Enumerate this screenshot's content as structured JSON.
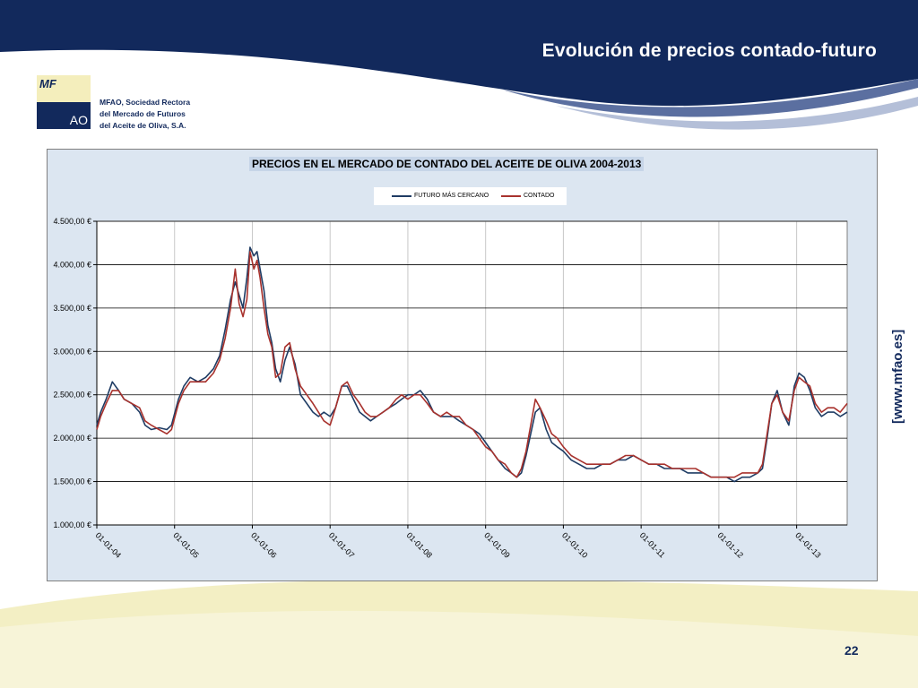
{
  "header": {
    "title": "Evolución de precios contado-futuro"
  },
  "logo": {
    "mark_top": "MF",
    "mark_bottom": "AO",
    "org_line1": "MFAO, Sociedad Rectora",
    "org_line2": "del Mercado de Futuros",
    "org_line3": "del Aceite de Oliva, S.A."
  },
  "website": "[www.mfao.es]",
  "page_number": "22",
  "colors": {
    "navy": "#12295c",
    "futuro": "#1f3c64",
    "contado": "#a8322d",
    "plot_bg": "#ffffff",
    "frame_bg": "#dce6f1"
  },
  "chart_data": {
    "type": "line",
    "title": "PRECIOS EN EL MERCADO DE CONTADO DEL ACEITE DE OLIVA 2004-2013",
    "xlabel": "",
    "ylabel": "",
    "ylim": [
      1000,
      4500
    ],
    "yticks": [
      "1.000,00 €",
      "1.500,00 €",
      "2.000,00 €",
      "2.500,00 €",
      "3.000,00 €",
      "3.500,00 €",
      "4.000,00 €",
      "4.500,00 €"
    ],
    "ytick_values": [
      1000,
      1500,
      2000,
      2500,
      3000,
      3500,
      4000,
      4500
    ],
    "xticks": [
      "01-01-04",
      "01-01-05",
      "01-01-06",
      "01-01-07",
      "01-01-08",
      "01-01-09",
      "01-01-10",
      "01-01-11",
      "01-01-12",
      "01-01-13"
    ],
    "xlim": [
      2004.0,
      2013.65
    ],
    "grid": true,
    "legend_position": "top",
    "series": [
      {
        "name": "FUTURO MÁS CERCANO",
        "color": "#1f3c64",
        "x": [
          2004.0,
          2004.05,
          2004.12,
          2004.2,
          2004.28,
          2004.35,
          2004.45,
          2004.55,
          2004.62,
          2004.7,
          2004.8,
          2004.9,
          2004.96,
          2005.05,
          2005.12,
          2005.2,
          2005.3,
          2005.4,
          2005.5,
          2005.58,
          2005.65,
          2005.72,
          2005.78,
          2005.83,
          2005.88,
          2005.93,
          2005.97,
          2006.02,
          2006.06,
          2006.1,
          2006.15,
          2006.2,
          2006.25,
          2006.3,
          2006.36,
          2006.42,
          2006.48,
          2006.55,
          2006.62,
          2006.7,
          2006.78,
          2006.85,
          2006.92,
          2007.0,
          2007.07,
          2007.15,
          2007.22,
          2007.3,
          2007.38,
          2007.45,
          2007.52,
          2007.6,
          2007.68,
          2007.76,
          2007.85,
          2007.92,
          2008.0,
          2008.08,
          2008.16,
          2008.25,
          2008.33,
          2008.42,
          2008.5,
          2008.58,
          2008.66,
          2008.75,
          2008.84,
          2008.92,
          2009.0,
          2009.08,
          2009.16,
          2009.25,
          2009.33,
          2009.4,
          2009.46,
          2009.52,
          2009.58,
          2009.64,
          2009.7,
          2009.78,
          2009.85,
          2009.92,
          2010.0,
          2010.1,
          2010.2,
          2010.3,
          2010.4,
          2010.5,
          2010.6,
          2010.7,
          2010.8,
          2010.9,
          2011.0,
          2011.1,
          2011.2,
          2011.3,
          2011.4,
          2011.5,
          2011.6,
          2011.7,
          2011.8,
          2011.9,
          2012.0,
          2012.1,
          2012.2,
          2012.3,
          2012.4,
          2012.5,
          2012.56,
          2012.62,
          2012.68,
          2012.75,
          2012.82,
          2012.9,
          2012.97,
          2013.03,
          2013.1,
          2013.17,
          2013.24,
          2013.32,
          2013.4,
          2013.48,
          2013.56,
          2013.65
        ],
        "values": [
          2150,
          2300,
          2450,
          2650,
          2550,
          2450,
          2400,
          2300,
          2150,
          2100,
          2120,
          2100,
          2150,
          2450,
          2600,
          2700,
          2650,
          2700,
          2800,
          2950,
          3250,
          3600,
          3800,
          3650,
          3500,
          3850,
          4200,
          4100,
          4150,
          3950,
          3700,
          3300,
          3100,
          2800,
          2650,
          2900,
          3050,
          2850,
          2500,
          2400,
          2300,
          2250,
          2300,
          2250,
          2350,
          2600,
          2600,
          2450,
          2300,
          2250,
          2200,
          2250,
          2300,
          2350,
          2400,
          2450,
          2500,
          2500,
          2550,
          2450,
          2300,
          2250,
          2250,
          2250,
          2200,
          2150,
          2100,
          2050,
          1950,
          1850,
          1750,
          1650,
          1600,
          1550,
          1600,
          1800,
          2050,
          2300,
          2350,
          2100,
          1950,
          1900,
          1850,
          1750,
          1700,
          1650,
          1650,
          1700,
          1700,
          1750,
          1750,
          1800,
          1750,
          1700,
          1700,
          1650,
          1650,
          1650,
          1600,
          1600,
          1600,
          1550,
          1550,
          1550,
          1500,
          1550,
          1550,
          1600,
          1650,
          2000,
          2400,
          2550,
          2300,
          2150,
          2600,
          2750,
          2700,
          2550,
          2350,
          2250,
          2300,
          2300,
          2250,
          2300
        ]
      },
      {
        "name": "CONTADO",
        "color": "#a8322d",
        "x": [
          2004.0,
          2004.05,
          2004.12,
          2004.2,
          2004.28,
          2004.35,
          2004.45,
          2004.55,
          2004.62,
          2004.7,
          2004.8,
          2004.9,
          2004.96,
          2005.05,
          2005.12,
          2005.2,
          2005.3,
          2005.4,
          2005.5,
          2005.58,
          2005.65,
          2005.72,
          2005.78,
          2005.83,
          2005.88,
          2005.93,
          2005.97,
          2006.02,
          2006.06,
          2006.1,
          2006.15,
          2006.2,
          2006.25,
          2006.3,
          2006.36,
          2006.42,
          2006.48,
          2006.55,
          2006.62,
          2006.7,
          2006.78,
          2006.85,
          2006.92,
          2007.0,
          2007.07,
          2007.15,
          2007.22,
          2007.3,
          2007.38,
          2007.45,
          2007.52,
          2007.6,
          2007.68,
          2007.76,
          2007.85,
          2007.92,
          2008.0,
          2008.08,
          2008.16,
          2008.25,
          2008.33,
          2008.42,
          2008.5,
          2008.58,
          2008.66,
          2008.75,
          2008.84,
          2008.92,
          2009.0,
          2009.08,
          2009.16,
          2009.25,
          2009.33,
          2009.4,
          2009.46,
          2009.52,
          2009.58,
          2009.64,
          2009.7,
          2009.78,
          2009.85,
          2009.92,
          2010.0,
          2010.1,
          2010.2,
          2010.3,
          2010.4,
          2010.5,
          2010.6,
          2010.7,
          2010.8,
          2010.9,
          2011.0,
          2011.1,
          2011.2,
          2011.3,
          2011.4,
          2011.5,
          2011.6,
          2011.7,
          2011.8,
          2011.9,
          2012.0,
          2012.1,
          2012.2,
          2012.3,
          2012.4,
          2012.5,
          2012.56,
          2012.62,
          2012.68,
          2012.75,
          2012.82,
          2012.9,
          2012.97,
          2013.03,
          2013.1,
          2013.17,
          2013.24,
          2013.32,
          2013.4,
          2013.48,
          2013.56,
          2013.65
        ],
        "values": [
          2100,
          2250,
          2400,
          2550,
          2550,
          2450,
          2400,
          2350,
          2200,
          2150,
          2100,
          2050,
          2100,
          2400,
          2550,
          2650,
          2650,
          2650,
          2750,
          2900,
          3150,
          3500,
          3950,
          3550,
          3400,
          3600,
          4150,
          3950,
          4050,
          3850,
          3500,
          3200,
          3050,
          2700,
          2750,
          3050,
          3100,
          2800,
          2600,
          2500,
          2400,
          2300,
          2200,
          2150,
          2350,
          2600,
          2650,
          2500,
          2400,
          2300,
          2250,
          2250,
          2300,
          2350,
          2450,
          2500,
          2450,
          2500,
          2500,
          2400,
          2300,
          2250,
          2300,
          2250,
          2250,
          2150,
          2100,
          2000,
          1900,
          1850,
          1750,
          1700,
          1600,
          1550,
          1650,
          1850,
          2150,
          2450,
          2350,
          2200,
          2050,
          2000,
          1900,
          1800,
          1750,
          1700,
          1700,
          1700,
          1700,
          1750,
          1800,
          1800,
          1750,
          1700,
          1700,
          1700,
          1650,
          1650,
          1650,
          1650,
          1600,
          1550,
          1550,
          1550,
          1550,
          1600,
          1600,
          1600,
          1700,
          2050,
          2400,
          2500,
          2300,
          2200,
          2550,
          2700,
          2650,
          2600,
          2400,
          2300,
          2350,
          2350,
          2300,
          2400
        ]
      }
    ]
  }
}
